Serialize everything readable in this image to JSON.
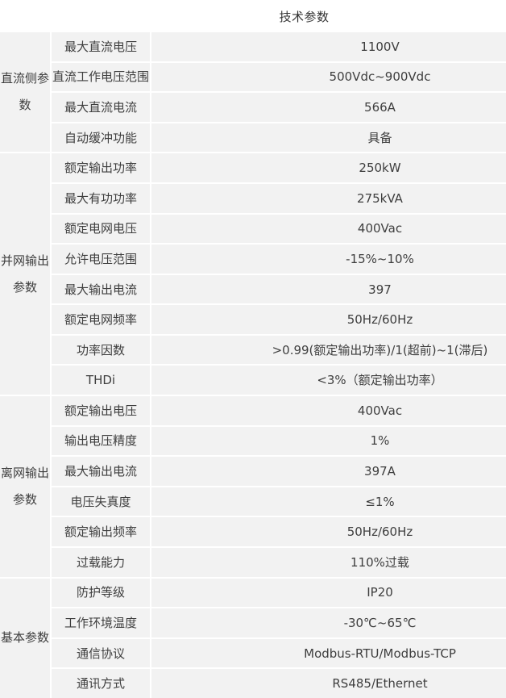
{
  "title": "技术参数",
  "colors": {
    "cell_bg": "#f2f2f2",
    "separator": "#ffffff",
    "text": "#3e3e3e"
  },
  "table": {
    "groups": [
      {
        "label": "直流侧参数",
        "rows": [
          {
            "name": "最大直流电压",
            "value": "1100V"
          },
          {
            "name": "直流工作电压范围",
            "value": "500Vdc~900Vdc"
          },
          {
            "name": "最大直流电流",
            "value": "566A"
          },
          {
            "name": "自动缓冲功能",
            "value": "具备"
          }
        ]
      },
      {
        "label": "并网输出参数",
        "rows": [
          {
            "name": "额定输出功率",
            "value": "250kW"
          },
          {
            "name": "最大有功功率",
            "value": "275kVA"
          },
          {
            "name": "额定电网电压",
            "value": "400Vac"
          },
          {
            "name": "允许电压范围",
            "value": "-15%~10%"
          },
          {
            "name": "最大输出电流",
            "value": "397"
          },
          {
            "name": "额定电网频率",
            "value": "50Hz/60Hz"
          },
          {
            "name": "功率因数",
            "value": ">0.99(额定输出功率)/1(超前)~1(滞后)"
          },
          {
            "name": "THDi",
            "value": "<3%（额定输出功率）"
          }
        ]
      },
      {
        "label": "离网输出参数",
        "rows": [
          {
            "name": "额定输出电压",
            "value": "400Vac"
          },
          {
            "name": "输出电压精度",
            "value": "1%"
          },
          {
            "name": "最大输出电流",
            "value": "397A"
          },
          {
            "name": "电压失真度",
            "value": "≤1%"
          },
          {
            "name": "额定输出频率",
            "value": "50Hz/60Hz"
          },
          {
            "name": "过载能力",
            "value": "110%过载"
          }
        ]
      },
      {
        "label": "基本参数",
        "rows": [
          {
            "name": "防护等级",
            "value": "IP20"
          },
          {
            "name": "工作环境温度",
            "value": "-30℃~65℃"
          },
          {
            "name": "通信协议",
            "value": "Modbus-RTU/Modbus-TCP"
          },
          {
            "name": "通讯方式",
            "value": "RS485/Ethernet"
          }
        ]
      }
    ]
  }
}
